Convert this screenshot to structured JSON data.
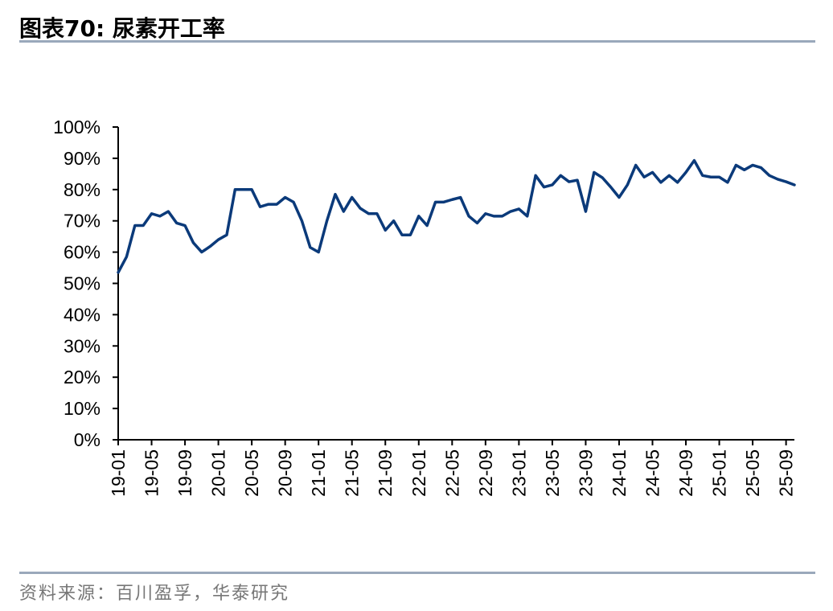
{
  "header": {
    "title": "图表70:   尿素开工率"
  },
  "footer": {
    "source": "资料来源：百川盈孚，华泰研究"
  },
  "colors": {
    "line": "#0b3a7a",
    "rule": "#9aa8bb",
    "source_text": "#777777"
  },
  "chart_data": {
    "type": "line",
    "title": "",
    "xlabel": "",
    "ylabel": "",
    "ylim": [
      0,
      100
    ],
    "y_ticks": [
      0,
      10,
      20,
      30,
      40,
      50,
      60,
      70,
      80,
      90,
      100
    ],
    "y_tick_labels": [
      "0%",
      "10%",
      "20%",
      "30%",
      "40%",
      "50%",
      "60%",
      "70%",
      "80%",
      "90%",
      "100%"
    ],
    "x_tick_labels": [
      "19-01",
      "19-05",
      "19-09",
      "20-01",
      "20-05",
      "20-09",
      "21-01",
      "21-05",
      "21-09",
      "22-01",
      "22-05",
      "22-09",
      "23-01",
      "23-05",
      "23-09",
      "24-01",
      "24-05",
      "24-09",
      "25-01",
      "25-05",
      "25-09"
    ],
    "grid": false,
    "legend": "none",
    "series": [
      {
        "values": [
          53.5,
          58.5,
          68.5,
          68.5,
          72.3,
          71.5,
          73.0,
          69.3,
          68.5,
          63.0,
          60.0,
          61.8,
          64.0,
          65.5,
          80.0,
          80.0,
          80.0,
          74.5,
          75.3,
          75.3,
          77.5,
          76.0,
          70.0,
          61.5,
          60.0,
          70.0,
          78.5,
          73.0,
          77.5,
          74.0,
          72.3,
          72.3,
          67.0,
          70.0,
          65.5,
          65.5,
          71.5,
          68.5,
          76.0,
          76.0,
          76.8,
          77.5,
          71.5,
          69.3,
          72.3,
          71.5,
          71.5,
          73.0,
          73.8,
          71.5,
          84.5,
          80.8,
          81.5,
          84.5,
          82.5,
          83.0,
          73.0,
          85.5,
          83.8,
          80.8,
          77.5,
          81.5,
          87.8,
          84.0,
          85.5,
          82.3,
          84.5,
          82.3,
          85.5,
          89.3,
          84.5,
          84.0,
          84.0,
          82.3,
          87.8,
          86.3,
          87.8,
          87.0,
          84.5,
          83.3,
          82.5,
          81.5
        ]
      }
    ]
  }
}
